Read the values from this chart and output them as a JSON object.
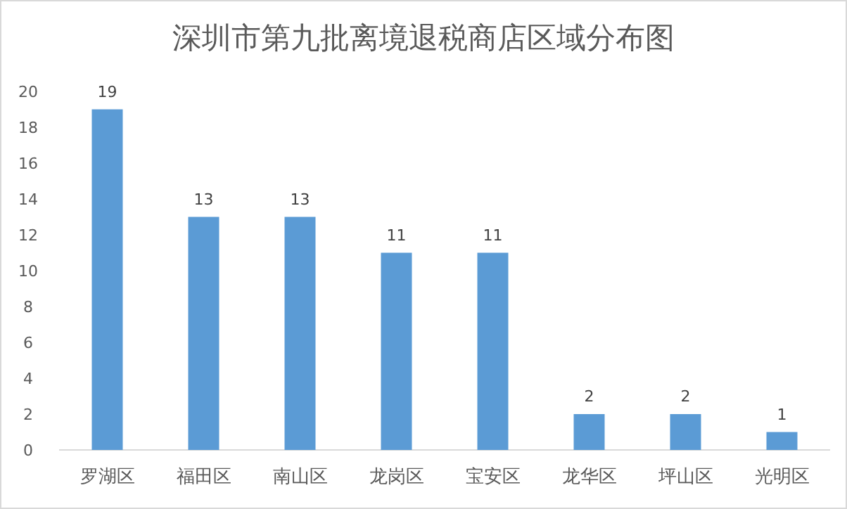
{
  "chart_data": {
    "type": "bar",
    "title": "深圳市第九批离境退税商店区域分布图",
    "categories": [
      "罗湖区",
      "福田区",
      "南山区",
      "龙岗区",
      "宝安区",
      "龙华区",
      "坪山区",
      "光明区"
    ],
    "values": [
      19,
      13,
      13,
      11,
      11,
      2,
      2,
      1
    ],
    "color": "#5b9bd5",
    "ylim": [
      0,
      20
    ],
    "yticks": [
      0,
      2,
      4,
      6,
      8,
      10,
      12,
      14,
      16,
      18,
      20
    ],
    "data_labels": true,
    "grid": false
  }
}
